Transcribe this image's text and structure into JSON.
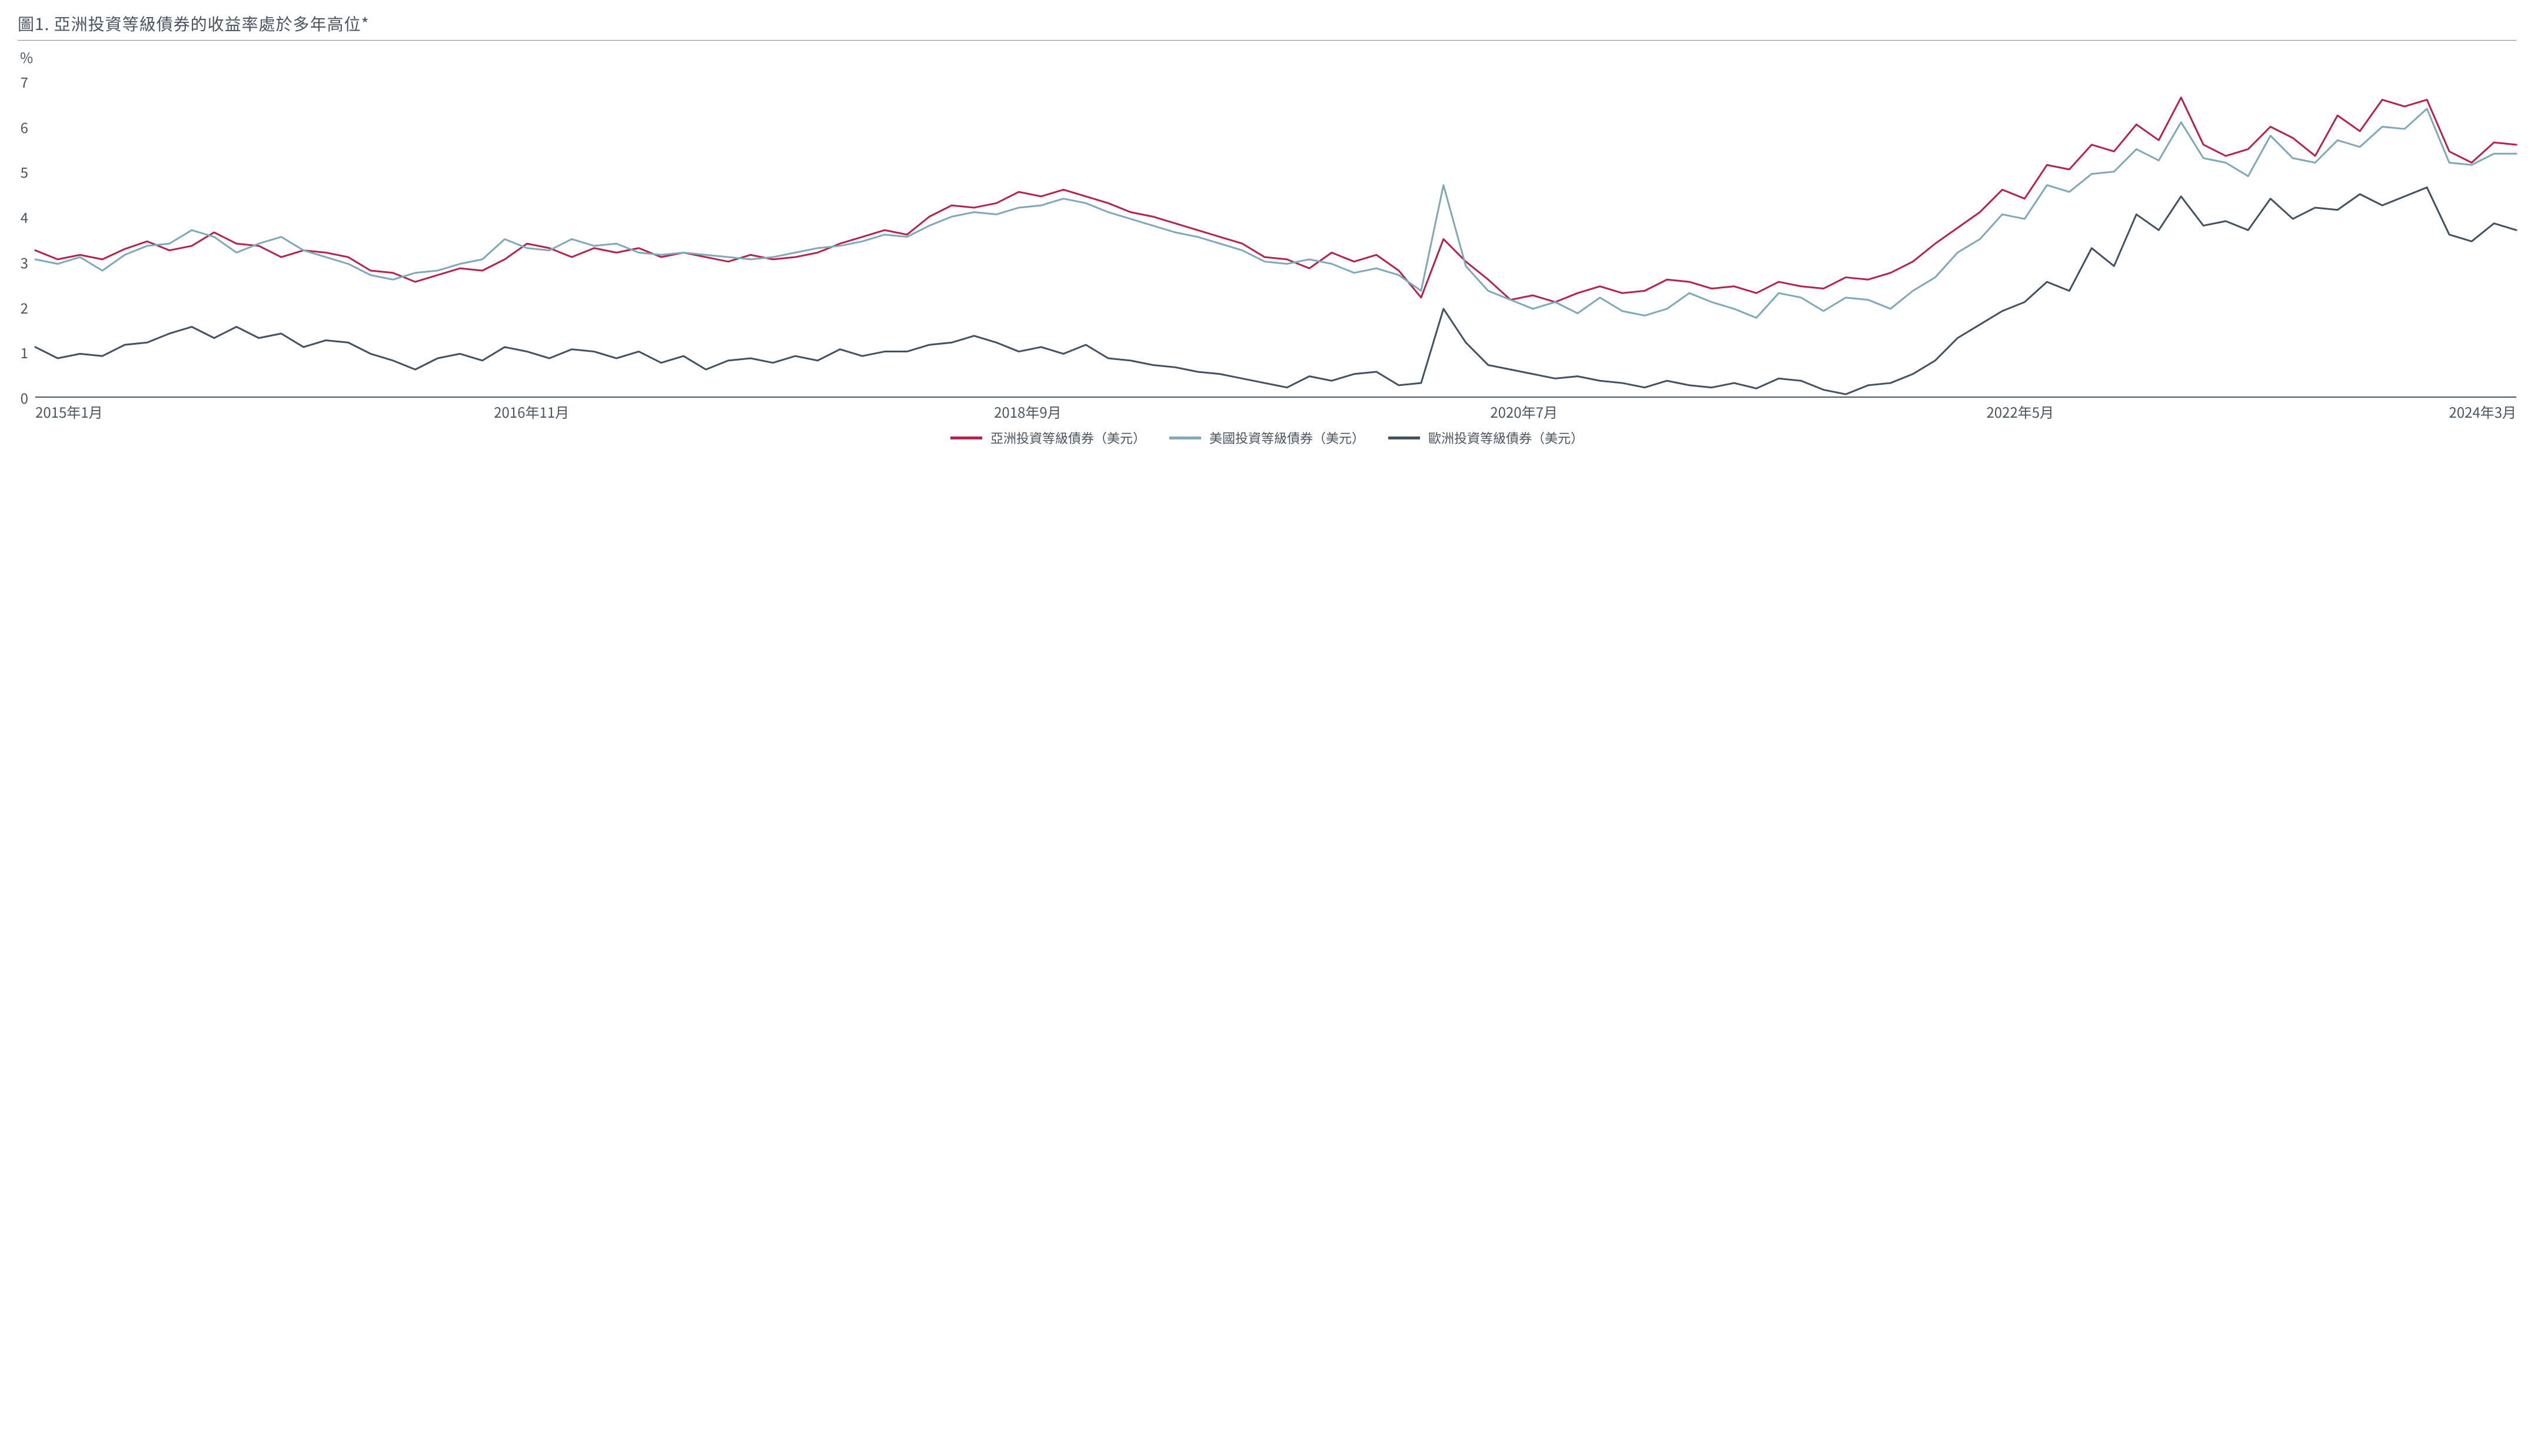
{
  "chart": {
    "type": "line",
    "title": "圖1. 亞洲投資等級債券的收益率處於多年高位*",
    "title_color": "#4a5560",
    "title_fontsize": 28,
    "y_unit_label": "%",
    "background_color": "#ffffff",
    "axis_color": "#4a5560",
    "axis_fontsize": 24,
    "x_range": [
      0,
      111
    ],
    "y_range": [
      0,
      7.3
    ],
    "y_ticks": [
      0,
      1,
      2,
      3,
      4,
      5,
      6,
      7
    ],
    "x_tick_labels": [
      "2015年1月",
      "2016年11月",
      "2018年9月",
      "2020年7月",
      "2022年5月",
      "2024年3月"
    ],
    "x_tick_positions_pct": [
      0,
      20,
      40,
      60,
      80,
      100
    ],
    "line_width": 3,
    "series": [
      {
        "name": "亞洲投資等級債券（美元）",
        "color": "#b5224b",
        "values": [
          3.25,
          3.05,
          3.15,
          3.05,
          3.28,
          3.45,
          3.25,
          3.35,
          3.65,
          3.4,
          3.35,
          3.1,
          3.25,
          3.2,
          3.1,
          2.8,
          2.75,
          2.55,
          2.7,
          2.85,
          2.8,
          3.05,
          3.4,
          3.3,
          3.1,
          3.3,
          3.2,
          3.3,
          3.1,
          3.2,
          3.1,
          3.0,
          3.15,
          3.05,
          3.1,
          3.2,
          3.4,
          3.55,
          3.7,
          3.6,
          4.0,
          4.25,
          4.2,
          4.3,
          4.55,
          4.45,
          4.6,
          4.45,
          4.3,
          4.1,
          4.0,
          3.85,
          3.7,
          3.55,
          3.4,
          3.1,
          3.05,
          2.85,
          3.2,
          3.0,
          3.15,
          2.8,
          2.2,
          3.5,
          3.0,
          2.6,
          2.15,
          2.25,
          2.1,
          2.3,
          2.45,
          2.3,
          2.35,
          2.6,
          2.55,
          2.4,
          2.45,
          2.3,
          2.55,
          2.45,
          2.4,
          2.65,
          2.6,
          2.75,
          3.0,
          3.4,
          3.75,
          4.1,
          4.6,
          4.4,
          5.15,
          5.05,
          5.6,
          5.45,
          6.05,
          5.7,
          6.65,
          5.6,
          5.35,
          5.5,
          6.0,
          5.75,
          5.35,
          6.25,
          5.9,
          6.6,
          6.45,
          6.6,
          5.45,
          5.2,
          5.65,
          5.6
        ]
      },
      {
        "name": "美國投資等級債券（美元）",
        "color": "#7fa8b8",
        "values": [
          3.05,
          2.95,
          3.1,
          2.8,
          3.15,
          3.35,
          3.4,
          3.7,
          3.55,
          3.2,
          3.4,
          3.55,
          3.25,
          3.1,
          2.95,
          2.7,
          2.6,
          2.75,
          2.8,
          2.95,
          3.05,
          3.5,
          3.3,
          3.25,
          3.5,
          3.35,
          3.4,
          3.2,
          3.15,
          3.2,
          3.15,
          3.1,
          3.05,
          3.1,
          3.2,
          3.3,
          3.35,
          3.45,
          3.6,
          3.55,
          3.8,
          4.0,
          4.1,
          4.05,
          4.2,
          4.25,
          4.4,
          4.3,
          4.1,
          3.95,
          3.8,
          3.65,
          3.55,
          3.4,
          3.25,
          3.0,
          2.95,
          3.05,
          2.95,
          2.75,
          2.85,
          2.7,
          2.35,
          4.7,
          2.9,
          2.35,
          2.15,
          1.95,
          2.1,
          1.85,
          2.2,
          1.9,
          1.8,
          1.95,
          2.3,
          2.1,
          1.95,
          1.75,
          2.3,
          2.2,
          1.9,
          2.2,
          2.15,
          1.95,
          2.35,
          2.65,
          3.2,
          3.5,
          4.05,
          3.95,
          4.7,
          4.55,
          4.95,
          5.0,
          5.5,
          5.25,
          6.1,
          5.3,
          5.2,
          4.9,
          5.8,
          5.3,
          5.2,
          5.7,
          5.55,
          6.0,
          5.95,
          6.4,
          5.2,
          5.15,
          5.4,
          5.4
        ]
      },
      {
        "name": "歐洲投資等級債券（美元）",
        "color": "#435261",
        "values": [
          1.1,
          0.85,
          0.95,
          0.9,
          1.15,
          1.2,
          1.4,
          1.55,
          1.3,
          1.55,
          1.3,
          1.4,
          1.1,
          1.25,
          1.2,
          0.95,
          0.8,
          0.6,
          0.85,
          0.95,
          0.8,
          1.1,
          1.0,
          0.85,
          1.05,
          1.0,
          0.85,
          1.0,
          0.75,
          0.9,
          0.6,
          0.8,
          0.85,
          0.75,
          0.9,
          0.8,
          1.05,
          0.9,
          1.0,
          1.0,
          1.15,
          1.2,
          1.35,
          1.2,
          1.0,
          1.1,
          0.95,
          1.15,
          0.85,
          0.8,
          0.7,
          0.65,
          0.55,
          0.5,
          0.4,
          0.3,
          0.2,
          0.45,
          0.35,
          0.5,
          0.55,
          0.25,
          0.3,
          1.95,
          1.2,
          0.7,
          0.6,
          0.5,
          0.4,
          0.45,
          0.35,
          0.3,
          0.2,
          0.35,
          0.25,
          0.2,
          0.3,
          0.18,
          0.4,
          0.35,
          0.15,
          0.05,
          0.25,
          0.3,
          0.5,
          0.8,
          1.3,
          1.6,
          1.9,
          2.1,
          2.55,
          2.35,
          3.3,
          2.9,
          4.05,
          3.7,
          4.45,
          3.8,
          3.9,
          3.7,
          4.4,
          3.95,
          4.2,
          4.15,
          4.5,
          4.25,
          4.45,
          4.65,
          3.6,
          3.45,
          3.85,
          3.7
        ]
      }
    ],
    "legend": {
      "swatch_width": 54,
      "swatch_height": 5,
      "fontsize": 22
    }
  }
}
